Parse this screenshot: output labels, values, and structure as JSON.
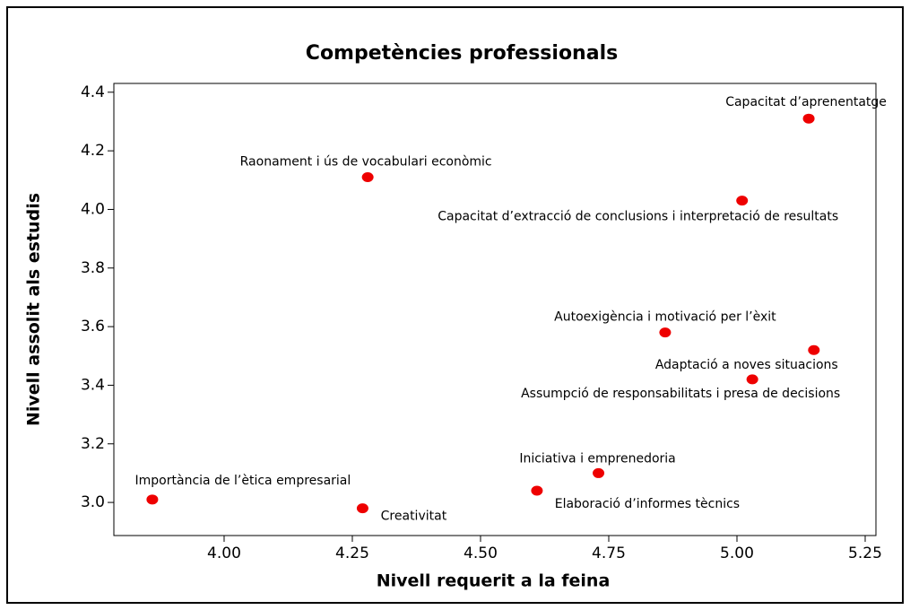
{
  "chart_data": {
    "type": "scatter",
    "title": "Competències professionals",
    "xlabel": "Nivell requerit a la feina",
    "ylabel": "Nivell assolit als estudis",
    "color": "#ee0000",
    "labels": [
      "Capacitat d’aprenentatge",
      "Raonament i ús de vocabulari econòmic",
      "Capacitat d’extracció de conclusions i interpretació de resultats",
      "Autoexigència i motivació per l’èxit",
      "Adaptació a noves situacions",
      "Assumpció de responsabilitats i presa de decisions",
      "Iniciativa i emprenedoria",
      "Elaboració d’informes tècnics",
      "Importància de l’ètica empresarial",
      "Creativitat"
    ],
    "x": [
      5.14,
      4.28,
      5.01,
      4.86,
      5.15,
      5.03,
      4.73,
      4.61,
      3.86,
      4.27
    ],
    "values": [
      4.31,
      4.11,
      4.03,
      3.58,
      3.52,
      3.42,
      3.1,
      3.04,
      3.01,
      2.98
    ],
    "xlim": [
      3.785,
      5.271
    ],
    "xticks": [
      {
        "value": 4,
        "label": "4.00"
      },
      4.25,
      {
        "value": 4.5,
        "label": "4.50"
      },
      4.75,
      {
        "value": 5,
        "label": "5.00"
      },
      5.25
    ],
    "ylim": [
      2.887,
      4.43
    ],
    "yticks": [
      {
        "value": 3,
        "label": "3.0"
      },
      3.2,
      3.4,
      3.6,
      3.8,
      {
        "value": 4,
        "label": "4.0"
      },
      4.2,
      4.4
    ]
  }
}
